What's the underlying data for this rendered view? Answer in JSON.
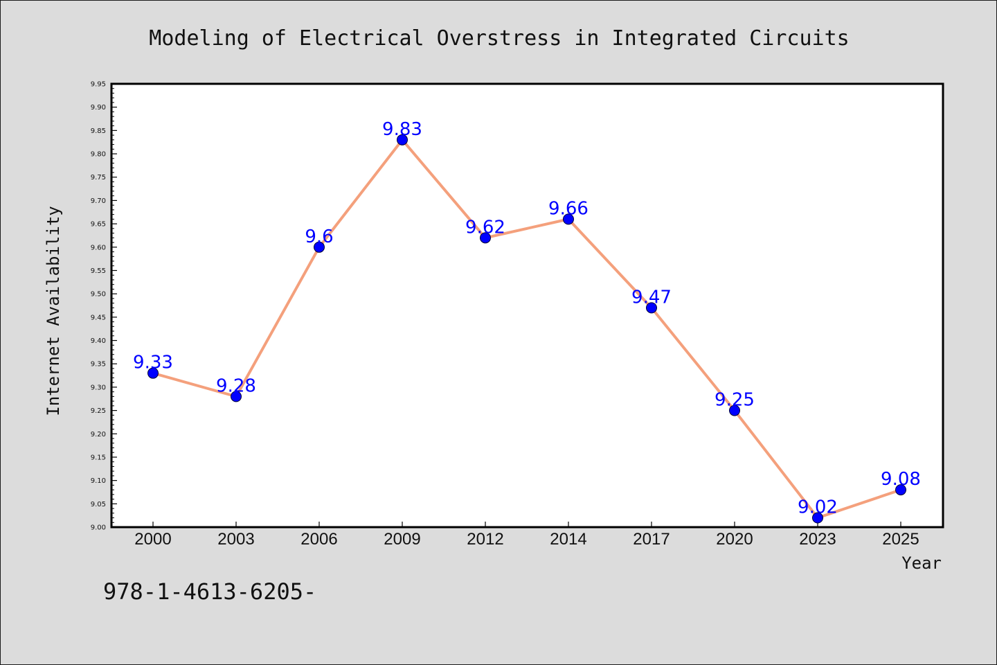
{
  "colors": {
    "background": "#dcdcdc",
    "plot_background": "#ffffff",
    "line": "#f4a07c",
    "marker": "#0000ff",
    "data_label": "#0000ff",
    "axis": "#000000"
  },
  "footer": {
    "text": "978-1-4613-6205-"
  },
  "chart_data": {
    "type": "line",
    "title": "Modeling of Electrical Overstress in Integrated Circuits",
    "xlabel": "Year",
    "ylabel": "Internet Availability",
    "categories": [
      "2000",
      "2003",
      "2006",
      "2009",
      "2012",
      "2014",
      "2017",
      "2020",
      "2023",
      "2025"
    ],
    "series": [
      {
        "values": [
          9.33,
          9.28,
          9.6,
          9.83,
          9.62,
          9.66,
          9.47,
          9.25,
          9.02,
          9.08
        ],
        "data_labels": [
          "9.33",
          "9.28",
          "9.6",
          "9.83",
          "9.62",
          "9.66",
          "9.47",
          "9.25",
          "9.02",
          "9.08"
        ]
      }
    ],
    "ylim": [
      9.0,
      9.95
    ],
    "yticks": [
      "9.00",
      "9.05",
      "9.10",
      "9.15",
      "9.20",
      "9.25",
      "9.30",
      "9.35",
      "9.40",
      "9.45",
      "9.50",
      "9.55",
      "9.60",
      "9.65",
      "9.70",
      "9.75",
      "9.80",
      "9.85",
      "9.90",
      "9.95"
    ],
    "grid": false,
    "legend": "none"
  }
}
